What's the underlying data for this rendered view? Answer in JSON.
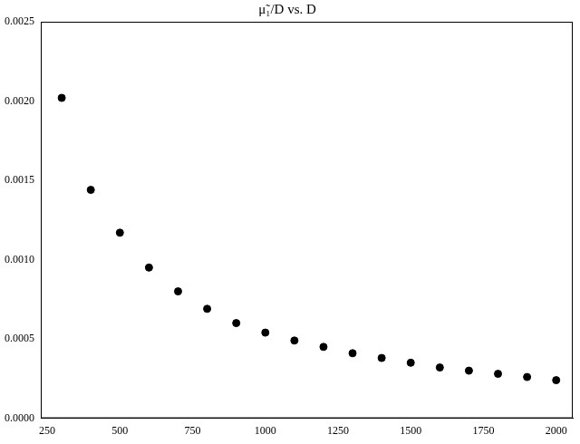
{
  "chart_data": {
    "type": "scatter",
    "title": "μ̃₁/D vs. D",
    "x": [
      300,
      400,
      500,
      600,
      700,
      800,
      900,
      1000,
      1100,
      1200,
      1300,
      1400,
      1500,
      1600,
      1700,
      1800,
      1900,
      2000
    ],
    "values": [
      0.00202,
      0.00144,
      0.00117,
      0.00095,
      0.0008,
      0.00069,
      0.0006,
      0.00054,
      0.00049,
      0.00045,
      0.00041,
      0.00038,
      0.00035,
      0.00032,
      0.0003,
      0.00028,
      0.00026,
      0.00024
    ],
    "color": "#000000",
    "marker": "circle",
    "xlim": [
      228,
      2057
    ],
    "xticks": [
      250,
      500,
      750,
      1000,
      1250,
      1500,
      1750,
      2000
    ],
    "ylim": [
      0,
      0.0025
    ],
    "yticks": [
      {
        "value": 0,
        "label": "0.0000"
      },
      {
        "value": 0.0005,
        "label": "0.0005"
      },
      {
        "value": 0.001,
        "label": "0.0010"
      },
      {
        "value": 0.0015,
        "label": "0.0015"
      },
      {
        "value": 0.002,
        "label": "0.0020"
      },
      {
        "value": 0.0025,
        "label": "0.0025"
      }
    ],
    "grid": false
  }
}
